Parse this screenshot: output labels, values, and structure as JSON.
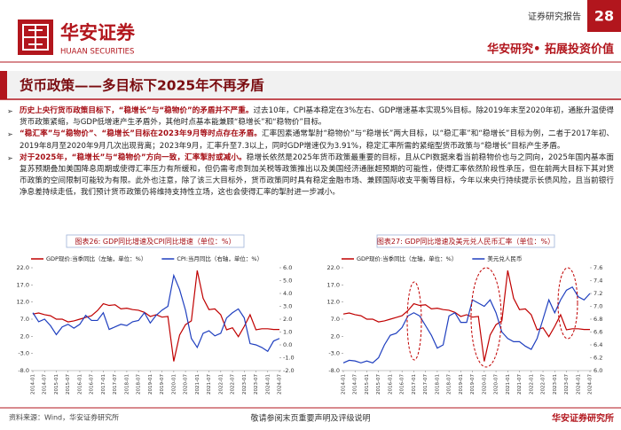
{
  "header": {
    "logo_cn": "华安证券",
    "logo_en": "HUAAN SECURITIES",
    "report_type": "证券研究报告",
    "page_number": "28",
    "slogan": "华安研究• 拓展投资价值"
  },
  "title": "货币政策——多目标下2025年不再矛盾",
  "bullets": [
    {
      "lead": "历史上央行货币政策目标下，“稳增长”与“稳物价”的矛盾并不严重。",
      "body": "过去10年，CPI基本稳定在3%左右、GDP增速基本实现5%目标。除2019年末至2020年初，通胀升温使得货币政策紧缩，与GDP低增速产生矛盾外，其他时点基本能兼顾“稳增长”和“稳物价”目标。"
    },
    {
      "lead": "“稳汇率”与“稳物价”、“稳增长”目标在2023年9月等时点存在矛盾。",
      "body": "汇率因素通常掣肘“稳物价”与“稳增长”两大目标，以“稳汇率”和“稳增长”目标为例，二者于2017年初、2019年8月至2020年9月几次出现背离；2023年9月，汇率升至7.3以上，同时GDP增速仅为3.91%，稳定汇率所需的紧缩型货币政策与“稳增长”目标产生矛盾。"
    },
    {
      "lead": "对于2025年，“稳增长”与“稳物价”方向一致，汇率掣肘或减小。",
      "body": "稳增长依然是2025年货币政策最重要的目标，且从CPI数据来看当前稳物价也与之同向，2025年国内基本面复苏预期叠加美国降息周期或使得汇率压力有所缓和，但仍需考虑到加关税等政策推出以及美国经济通胀超预期的可能性，使得汇率依然阶段性承压，但在前两大目标下其对货币政策的空间限制可能较为有限。此外也注意，除了该三大目标外，货币政策同时具有稳定金融市场、兼顾国际收支平衡等目标，今年以来央行持续提示长债风险，且当前银行净息差持续走低，我们预计货币政策仍将维持支持性立场，这也会使得汇率的掣肘进一步减小。"
    }
  ],
  "chart_data": [
    {
      "type": "line",
      "title": "图表26:  GDP同比增速及CPI同比增速（单位：%）",
      "categories": [
        "2014-01",
        null,
        "2014-07",
        null,
        "2015-01",
        null,
        "2015-07",
        null,
        "2016-01",
        null,
        "2016-07",
        null,
        "2017-01",
        null,
        "2017-07",
        null,
        "2018-01",
        null,
        "2018-07",
        null,
        "2019-01",
        null,
        "2019-07",
        null,
        "2020-01",
        null,
        "2020-07",
        null,
        "2021-01",
        null,
        "2021-07",
        null,
        "2022-01",
        null,
        "2022-07",
        null,
        "2023-01",
        null,
        "2023-07",
        null,
        "2024-01",
        null,
        "2024-07"
      ],
      "ylim": [
        -8,
        22
      ],
      "yticks": [
        {
          "value": -8,
          "label": "-8.0"
        },
        {
          "value": -3,
          "label": "-3.0"
        },
        {
          "value": 2,
          "label": "2.0"
        },
        {
          "value": 7,
          "label": "7.0"
        },
        {
          "value": 12,
          "label": "12.0"
        },
        {
          "value": 17,
          "label": "17.0"
        },
        {
          "value": 22,
          "label": "22.0"
        }
      ],
      "y2lim": [
        -2,
        6
      ],
      "y2ticks": [
        {
          "value": -2,
          "label": "-2.0"
        },
        {
          "value": -1,
          "label": "-1.0"
        },
        {
          "value": 0,
          "label": "0.0"
        },
        {
          "value": 1,
          "label": "1.0"
        },
        {
          "value": 2,
          "label": "2.0"
        },
        {
          "value": 3,
          "label": "3.0"
        },
        {
          "value": 4,
          "label": "4.0"
        },
        {
          "value": 5,
          "label": "5.0"
        },
        {
          "value": 6,
          "label": "6.0"
        }
      ],
      "series": [
        {
          "name": "GDP现价:当季同比（左轴，单位：%）",
          "color": "#c00000",
          "values": [
            8.5,
            8.8,
            8.3,
            8.0,
            7.0,
            7.0,
            6.2,
            6.5,
            7.0,
            7.5,
            8.0,
            9.5,
            11.5,
            11.0,
            11.2,
            10.0,
            10.2,
            9.8,
            9.6,
            9.0,
            7.8,
            8.3,
            7.6,
            7.8,
            -5.3,
            2.4,
            5.4,
            6.5,
            21.2,
            13.1,
            9.8,
            10.0,
            8.3,
            3.9,
            4.5,
            1.9,
            4.9,
            8.3,
            3.9,
            4.2,
            4.2,
            4.0,
            4.0
          ]
        },
        {
          "name": "CPI:当月同比（右轴，单位：%）",
          "color": "#1f3fbf",
          "axis": "y2",
          "values": [
            2.5,
            1.8,
            2.0,
            1.5,
            0.8,
            1.4,
            1.6,
            1.3,
            1.6,
            2.3,
            1.9,
            1.9,
            2.5,
            1.2,
            1.4,
            1.6,
            1.5,
            1.8,
            1.9,
            2.5,
            1.7,
            2.3,
            2.7,
            3.0,
            5.4,
            4.3,
            2.7,
            0.5,
            -0.2,
            0.9,
            1.1,
            0.7,
            0.9,
            2.1,
            2.5,
            2.8,
            2.1,
            0.1,
            0.0,
            -0.2,
            -0.5,
            0.3,
            0.5
          ]
        }
      ]
    },
    {
      "type": "line",
      "title": "图表27:  GDP同比增速及美元兑人民币汇率（单位：%）",
      "categories": [
        "2014-01",
        null,
        "2014-07",
        null,
        "2015-01",
        null,
        "2015-07",
        null,
        "2016-01",
        null,
        "2016-07",
        null,
        "2017-01",
        null,
        "2017-07",
        null,
        "2018-01",
        null,
        "2018-07",
        null,
        "2019-01",
        null,
        "2019-07",
        null,
        "2020-01",
        null,
        "2020-07",
        null,
        "2021-01",
        null,
        "2021-07",
        null,
        "2022-01",
        null,
        "2022-07",
        null,
        "2023-01",
        null,
        "2023-07",
        null,
        "2024-01",
        null,
        "2024-07"
      ],
      "ylim": [
        -8,
        22
      ],
      "yticks": [
        {
          "value": -8,
          "label": "-8.0"
        },
        {
          "value": -3,
          "label": "-3.0"
        },
        {
          "value": 2,
          "label": "2.0"
        },
        {
          "value": 7,
          "label": "7.0"
        },
        {
          "value": 12,
          "label": "12.0"
        },
        {
          "value": 17,
          "label": "17.0"
        },
        {
          "value": 22,
          "label": "22.0"
        }
      ],
      "y2lim": [
        6.0,
        7.6
      ],
      "y2ticks": [
        {
          "value": 6,
          "label": "6.0"
        },
        6.2,
        6.4,
        6.6,
        6.8,
        {
          "value": 7,
          "label": "7.0"
        },
        7.2,
        7.4,
        7.6
      ],
      "series": [
        {
          "name": "GDP现价:当季同比（左轴，单位：%）",
          "color": "#c00000",
          "values": [
            8.5,
            8.8,
            8.3,
            8.0,
            7.0,
            7.0,
            6.2,
            6.5,
            7.0,
            7.5,
            8.0,
            9.5,
            11.5,
            11.0,
            11.2,
            10.0,
            10.2,
            9.8,
            9.6,
            9.0,
            7.8,
            8.3,
            7.6,
            7.8,
            -5.3,
            2.4,
            5.4,
            6.5,
            21.2,
            13.1,
            9.8,
            10.0,
            8.3,
            3.9,
            4.5,
            1.9,
            4.9,
            8.3,
            3.9,
            4.2,
            4.2,
            4.0,
            4.0
          ]
        },
        {
          "name": "美元兑人民币",
          "color": "#1f3fbf",
          "axis": "y2",
          "values": [
            6.12,
            6.16,
            6.15,
            6.12,
            6.15,
            6.12,
            6.2,
            6.4,
            6.55,
            6.58,
            6.67,
            6.85,
            6.9,
            6.85,
            6.7,
            6.55,
            6.35,
            6.4,
            6.85,
            6.9,
            6.75,
            6.75,
            7.1,
            7.05,
            7.0,
            7.1,
            6.9,
            6.6,
            6.5,
            6.45,
            6.45,
            6.38,
            6.33,
            6.5,
            6.8,
            7.1,
            6.9,
            7.1,
            7.25,
            7.3,
            7.15,
            7.1,
            7.2
          ]
        }
      ]
    }
  ],
  "footer": {
    "source": "资料来源：Wind，华安证券研究所",
    "disclaimer": "敬请参阅末页重要声明及评级说明",
    "org": "华安证券研究所"
  }
}
